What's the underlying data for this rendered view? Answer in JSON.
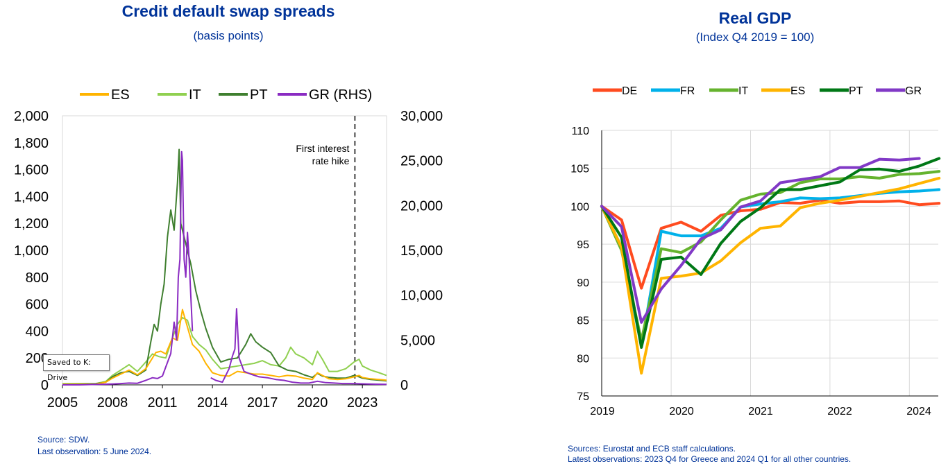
{
  "colors": {
    "title": "#003399",
    "ES": "#FFB400",
    "IT": "#90D050",
    "PT": "#3F7F2F",
    "GR": "#8A2BC2",
    "gdp_DE": "#FF4B1F",
    "gdp_FR": "#00B1EA",
    "gdp_IT": "#65B32E",
    "gdp_ES": "#FFB400",
    "gdp_PT": "#007816",
    "gdp_GR": "#8139C6"
  },
  "tooltip": {
    "text": "Saved to K: Drive"
  },
  "chart_data": [
    {
      "type": "line",
      "title": "Credit default swap spreads",
      "subtitle": "(basis points)",
      "x_ticks": [
        "2005",
        "2008",
        "2011",
        "2014",
        "2017",
        "2020",
        "2023"
      ],
      "y_left_ticks": [
        "0",
        "200",
        "400",
        "600",
        "800",
        "1,000",
        "1,200",
        "1,400",
        "1,600",
        "1,800",
        "2,000"
      ],
      "y_right_ticks": [
        "0",
        "5,000",
        "10,000",
        "15,000",
        "20,000",
        "25,000",
        "30,000"
      ],
      "ylim_left": [
        0,
        2000
      ],
      "ylim_right": [
        0,
        30000
      ],
      "xlim": [
        2005.0,
        2024.45
      ],
      "legend": [
        "ES",
        "IT",
        "PT",
        "GR (RHS)"
      ],
      "legend_position": "top",
      "annotation": {
        "text_line1": "First interest",
        "text_line2": "rate hike",
        "x": 2022.55
      },
      "series": [
        {
          "name": "ES",
          "axis": "left",
          "x": [
            2005,
            2006,
            2007,
            2007.6,
            2008,
            2008.5,
            2009,
            2009.5,
            2010,
            2010.4,
            2010.6,
            2010.9,
            2011.2,
            2011.6,
            2011.9,
            2012.2,
            2012.5,
            2012.8,
            2013.2,
            2013.6,
            2014,
            2014.5,
            2015,
            2015.5,
            2016,
            2016.5,
            2017,
            2017.5,
            2018,
            2018.5,
            2019,
            2019.5,
            2020,
            2020.3,
            2020.6,
            2021,
            2021.5,
            2022,
            2022.5,
            2022.8,
            2023,
            2023.5,
            2024,
            2024.45
          ],
          "y": [
            3,
            4,
            5,
            20,
            50,
            80,
            110,
            75,
            120,
            200,
            240,
            250,
            230,
            350,
            330,
            560,
            430,
            300,
            250,
            160,
            90,
            70,
            65,
            100,
            90,
            80,
            80,
            70,
            60,
            70,
            65,
            50,
            40,
            90,
            70,
            45,
            40,
            45,
            60,
            70,
            55,
            45,
            40,
            35
          ]
        },
        {
          "name": "IT",
          "axis": "left",
          "x": [
            2005,
            2006,
            2007,
            2007.6,
            2008,
            2008.5,
            2009,
            2009.5,
            2010,
            2010.4,
            2010.8,
            2011.2,
            2011.6,
            2011.9,
            2012.2,
            2012.5,
            2012.8,
            2013.2,
            2013.6,
            2014,
            2014.5,
            2015,
            2015.5,
            2016,
            2016.5,
            2017,
            2017.5,
            2018,
            2018.4,
            2018.7,
            2019,
            2019.5,
            2020,
            2020.3,
            2020.6,
            2021,
            2021.5,
            2022,
            2022.5,
            2022.8,
            2023,
            2023.5,
            2024,
            2024.45
          ],
          "y": [
            8,
            9,
            10,
            25,
            70,
            110,
            150,
            100,
            170,
            230,
            210,
            200,
            350,
            450,
            500,
            480,
            360,
            300,
            260,
            190,
            120,
            130,
            140,
            150,
            160,
            180,
            150,
            140,
            200,
            280,
            230,
            200,
            150,
            250,
            190,
            100,
            100,
            120,
            170,
            190,
            140,
            110,
            90,
            70
          ]
        },
        {
          "name": "PT",
          "axis": "left",
          "x": [
            2005,
            2006,
            2007,
            2007.6,
            2008,
            2008.5,
            2009,
            2009.5,
            2010,
            2010.3,
            2010.5,
            2010.7,
            2010.9,
            2011.1,
            2011.3,
            2011.5,
            2011.7,
            2011.9,
            2012.0,
            2012.1,
            2012.3,
            2012.5,
            2012.7,
            2013.0,
            2013.3,
            2013.6,
            2014,
            2014.5,
            2015,
            2015.5,
            2016,
            2016.3,
            2016.6,
            2017,
            2017.5,
            2018,
            2018.5,
            2019,
            2019.5,
            2020,
            2020.3,
            2020.6,
            2021,
            2021.5,
            2022,
            2022.5,
            2022.8,
            2023,
            2023.5,
            2024,
            2024.45
          ],
          "y": [
            5,
            6,
            8,
            20,
            60,
            90,
            100,
            70,
            110,
            320,
            450,
            400,
            600,
            750,
            1100,
            1300,
            1150,
            1500,
            1750,
            1200,
            1100,
            1000,
            900,
            700,
            550,
            420,
            280,
            170,
            190,
            200,
            300,
            380,
            320,
            280,
            240,
            140,
            110,
            100,
            75,
            55,
            85,
            65,
            55,
            50,
            50,
            70,
            60,
            50,
            40,
            35,
            30
          ]
        },
        {
          "name": "GR (RHS)",
          "axis": "right",
          "x": [
            2005,
            2006,
            2007,
            2008,
            2008.5,
            2009,
            2009.5,
            2010,
            2010.4,
            2010.7,
            2011.0,
            2011.2,
            2011.5,
            2011.7,
            2011.85,
            2011.95,
            2012.05,
            2012.15,
            2012.2,
            2012.3,
            2012.4,
            2012.5,
            2012.6,
            2012.7,
            2012.8,
            2013.5,
            2013.9,
            2014.2,
            2014.6,
            2015.0,
            2015.2,
            2015.35,
            2015.45,
            2015.6,
            2015.9,
            2016.3,
            2016.8,
            2017.3,
            2017.8,
            2018.3,
            2018.8,
            2019.3,
            2019.8,
            2020.3,
            2020.8,
            2021.3,
            2021.8,
            2022.3,
            2022.8,
            2023.3,
            2023.8,
            2024.45
          ],
          "y": [
            0,
            0,
            50,
            100,
            150,
            200,
            180,
            500,
            800,
            700,
            1000,
            2000,
            3500,
            7000,
            5000,
            12000,
            14000,
            26000,
            25000,
            14000,
            12000,
            17000,
            14000,
            10000,
            6000,
            null,
            800,
            500,
            300,
            1800,
            3200,
            4000,
            8500,
            3000,
            1500,
            1200,
            900,
            800,
            600,
            500,
            300,
            200,
            200,
            400,
            250,
            200,
            150,
            150,
            120,
            100,
            80,
            60
          ]
        }
      ]
    },
    {
      "type": "line",
      "title": "Real GDP",
      "subtitle": "(Index Q4 2019 = 100)",
      "x_ticks": [
        "2019",
        "2020",
        "2021",
        "2022",
        "2024"
      ],
      "y_ticks": [
        "75",
        "80",
        "85",
        "90",
        "95",
        "100",
        "105",
        "110"
      ],
      "ylim": [
        75,
        110
      ],
      "legend": [
        "DE",
        "FR",
        "IT",
        "ES",
        "PT",
        "GR"
      ],
      "legend_position": "top",
      "quarters": [
        "2019 Q4",
        "2020 Q1",
        "2020 Q2",
        "2020 Q3",
        "2020 Q4",
        "2021 Q1",
        "2021 Q2",
        "2021 Q3",
        "2021 Q4",
        "2022 Q1",
        "2022 Q2",
        "2022 Q3",
        "2022 Q4",
        "2023 Q1",
        "2023 Q2",
        "2023 Q3",
        "2023 Q4",
        "2024 Q1"
      ],
      "series": [
        {
          "name": "DE",
          "values": [
            100,
            98.2,
            89.2,
            97.1,
            97.9,
            96.7,
            98.8,
            99.4,
            99.6,
            100.5,
            100.4,
            100.8,
            100.4,
            100.6,
            100.6,
            100.7,
            100.2,
            100.4
          ]
        },
        {
          "name": "FR",
          "values": [
            100,
            94.6,
            81.6,
            96.7,
            96.1,
            96.1,
            97.1,
            99.9,
            100.3,
            100.6,
            101.1,
            101.0,
            101.1,
            101.4,
            101.7,
            101.9,
            102.0,
            102.2
          ]
        },
        {
          "name": "IT",
          "values": [
            100,
            94.2,
            82.3,
            94.4,
            93.9,
            95.3,
            98.2,
            100.8,
            101.6,
            101.8,
            103.1,
            103.6,
            103.6,
            103.9,
            103.7,
            104.2,
            104.3,
            104.6
          ]
        },
        {
          "name": "ES",
          "values": [
            100,
            94.6,
            78.0,
            90.5,
            90.8,
            91.2,
            92.8,
            95.2,
            97.1,
            97.4,
            99.8,
            100.4,
            100.8,
            101.3,
            101.8,
            102.3,
            103.0,
            103.7
          ]
        },
        {
          "name": "PT",
          "values": [
            100,
            95.9,
            81.4,
            93.0,
            93.3,
            91.0,
            95.1,
            98.0,
            99.8,
            102.2,
            102.2,
            102.7,
            103.2,
            104.8,
            104.9,
            104.6,
            105.3,
            106.3
          ]
        },
        {
          "name": "GR",
          "values": [
            100,
            97.3,
            84.7,
            89.1,
            92.2,
            95.7,
            96.9,
            99.9,
            100.7,
            103.1,
            103.5,
            103.9,
            105.1,
            105.1,
            106.2,
            106.1,
            106.3
          ]
        }
      ]
    }
  ],
  "left_footer": {
    "line1": "Source: SDW.",
    "line2": "Last observation: 5 June 2024."
  },
  "right_footer": {
    "line1": "Sources: Eurostat and ECB staff calculations.",
    "line2": "Latest observations: 2023 Q4 for Greece and 2024 Q1 for all other countries."
  }
}
